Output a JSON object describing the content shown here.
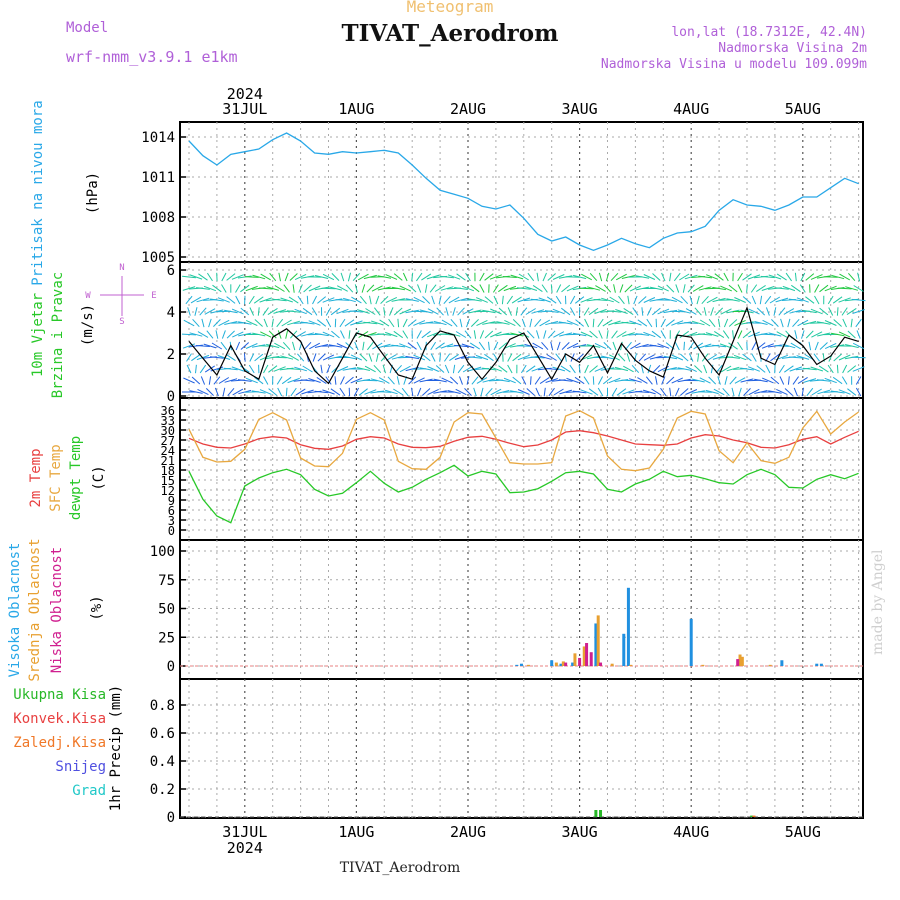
{
  "header": {
    "meteogram_label": "Meteogram",
    "title": "TIVAT_Aerodrom",
    "model_label": "Model",
    "model_name": "wrf-nmm_v3.9.1 e1km",
    "lonlat": "lon,lat (18.7312E, 42.4N)",
    "elevation": "Nadmorska Visina 2m",
    "model_elevation": "Nadmorska Visina u modelu 109.099m",
    "year": "2024",
    "watermark": "made by Angel",
    "footer_station": "TIVAT_Aerodrom"
  },
  "colors": {
    "pressure": "#29a8e8",
    "temp2m": "#e84040",
    "sfc_temp": "#e8a840",
    "dewpt": "#28c828",
    "high_cloud": "#2090e0",
    "mid_cloud": "#e8a030",
    "low_cloud": "#d02090",
    "precip_total": "#28b828",
    "precip_conv": "#e84040",
    "precip_frozen": "#f07828",
    "snow": "#5050e0",
    "hail": "#20c8c8",
    "wind_speed": "#000000",
    "gust_marker": "#e84040"
  },
  "chart_data": [
    {
      "type": "line",
      "panel": "pressure",
      "ylabel": [
        "Pritisak na nivou mora",
        "(hPa)"
      ],
      "ylim": [
        1005,
        1015
      ],
      "yticks": [
        1005,
        1008,
        1011,
        1014
      ],
      "xticks": [
        "31JUL",
        "1AUG",
        "2AUG",
        "3AUG",
        "4AUG",
        "5AUG"
      ],
      "x_hours": [
        0,
        3,
        6,
        9,
        12,
        15,
        18,
        21,
        24,
        27,
        30,
        33,
        36,
        39,
        42,
        45,
        48,
        51,
        54,
        57,
        60,
        63,
        66,
        69,
        72,
        75,
        78,
        81,
        84,
        87,
        90,
        93,
        96,
        99,
        102,
        105,
        108,
        111,
        114,
        117,
        120,
        123,
        126,
        129,
        132,
        135,
        138,
        141,
        144
      ],
      "values": [
        1013.7,
        1012.6,
        1011.9,
        1012.7,
        1012.9,
        1013.1,
        1013.8,
        1014.3,
        1013.7,
        1012.8,
        1012.7,
        1012.9,
        1012.8,
        1012.9,
        1013.0,
        1012.8,
        1011.9,
        1010.9,
        1010.0,
        1009.7,
        1009.4,
        1008.8,
        1008.6,
        1008.9,
        1007.9,
        1006.7,
        1006.2,
        1006.5,
        1005.9,
        1005.5,
        1005.9,
        1006.4,
        1006.0,
        1005.7,
        1006.4,
        1006.8,
        1006.9,
        1007.3,
        1008.5,
        1009.3,
        1008.9,
        1008.8,
        1008.5,
        1008.9,
        1009.5,
        1009.5,
        1010.2,
        1010.9,
        1010.5
      ]
    },
    {
      "type": "line",
      "panel": "wind",
      "ylabel": [
        "10m Vjetar",
        "Brzina i Pravac",
        "(m/s)"
      ],
      "compass": [
        "N",
        "W",
        "E",
        "S"
      ],
      "ylim": [
        0,
        6.2
      ],
      "yticks": [
        0,
        2,
        4,
        6
      ],
      "x_hours": [
        0,
        3,
        6,
        9,
        12,
        15,
        18,
        21,
        24,
        27,
        30,
        33,
        36,
        39,
        42,
        45,
        48,
        51,
        54,
        57,
        60,
        63,
        66,
        69,
        72,
        75,
        78,
        81,
        84,
        87,
        90,
        93,
        96,
        99,
        102,
        105,
        108,
        111,
        114,
        117,
        120,
        123,
        126,
        129,
        132,
        135,
        138,
        141,
        144
      ],
      "speed": [
        2.6,
        1.8,
        1.0,
        2.4,
        1.2,
        0.8,
        2.8,
        3.2,
        2.6,
        1.2,
        0.6,
        1.8,
        3.0,
        2.8,
        1.9,
        1.0,
        0.8,
        2.4,
        3.1,
        2.9,
        1.6,
        0.8,
        1.6,
        2.7,
        3.0,
        1.9,
        0.8,
        2.0,
        1.6,
        2.4,
        1.1,
        2.5,
        1.7,
        1.2,
        0.9,
        2.9,
        2.8,
        1.8,
        1.0,
        2.6,
        4.2,
        1.8,
        1.5,
        2.9,
        2.4,
        1.5,
        1.9,
        2.8,
        2.6
      ]
    },
    {
      "type": "line",
      "panel": "temperature",
      "ylabel": [
        "2m Temp",
        "SFC Temp",
        "dewpt Temp",
        "(C)"
      ],
      "ylim": [
        0,
        36
      ],
      "yticks": [
        0,
        3,
        6,
        9,
        12,
        15,
        18,
        21,
        24,
        27,
        30,
        33,
        36
      ],
      "x_hours": [
        0,
        3,
        6,
        9,
        12,
        15,
        18,
        21,
        24,
        27,
        30,
        33,
        36,
        39,
        42,
        45,
        48,
        51,
        54,
        57,
        60,
        63,
        66,
        69,
        72,
        75,
        78,
        81,
        84,
        87,
        90,
        93,
        96,
        99,
        102,
        105,
        108,
        111,
        114,
        117,
        120,
        123,
        126,
        129,
        132,
        135,
        138,
        141,
        144
      ],
      "series": [
        {
          "name": "2m Temp",
          "values": [
            27.5,
            25.8,
            24.8,
            24.6,
            25.8,
            27.4,
            28.0,
            27.6,
            25.6,
            24.5,
            24.2,
            25.2,
            27.2,
            28.0,
            27.6,
            25.8,
            24.8,
            24.7,
            25.1,
            26.6,
            27.8,
            28.1,
            27.2,
            26.0,
            25.0,
            25.5,
            27.0,
            29.4,
            29.8,
            29.2,
            28.2,
            27.0,
            25.8,
            25.6,
            25.4,
            25.8,
            27.6,
            28.6,
            28.2,
            27.0,
            26.2,
            24.8,
            24.6,
            25.6,
            27.2,
            28.0,
            25.8,
            27.8,
            29.6
          ]
        },
        {
          "name": "SFC Temp",
          "values": [
            30.2,
            21.8,
            20.4,
            20.6,
            24.2,
            33.2,
            35.2,
            33.0,
            21.6,
            19.2,
            19.0,
            23.0,
            33.2,
            35.2,
            33.0,
            20.6,
            18.4,
            18.2,
            21.8,
            32.4,
            35.2,
            34.8,
            27.6,
            20.2,
            19.8,
            19.8,
            20.2,
            34.2,
            35.8,
            33.6,
            22.2,
            18.2,
            17.8,
            18.6,
            24.2,
            33.6,
            35.6,
            34.8,
            23.8,
            20.2,
            26.2,
            20.8,
            20.0,
            21.8,
            30.6,
            35.6,
            28.8,
            32.4,
            35.4
          ]
        },
        {
          "name": "dewpt Temp",
          "values": [
            17.6,
            9.2,
            4.2,
            2.2,
            13.2,
            15.6,
            17.2,
            18.2,
            16.6,
            12.2,
            10.2,
            11.0,
            14.2,
            17.6,
            14.0,
            11.4,
            12.8,
            15.2,
            17.2,
            19.4,
            16.2,
            17.6,
            16.8,
            11.2,
            11.4,
            12.4,
            14.6,
            17.2,
            17.6,
            16.8,
            12.2,
            11.4,
            13.8,
            15.2,
            17.6,
            16.0,
            16.4,
            15.4,
            14.2,
            13.8,
            16.6,
            18.2,
            16.6,
            12.8,
            12.6,
            15.2,
            16.6,
            15.4,
            17.0
          ]
        }
      ]
    },
    {
      "type": "bar",
      "panel": "cloud",
      "ylabel": [
        "Visoka Oblacnost",
        "Srednja Oblacnost",
        "Niska Oblacnost",
        "(%)"
      ],
      "ylim": [
        -3,
        103
      ],
      "yticks": [
        0,
        25,
        50,
        75,
        100
      ],
      "series": [
        {
          "name": "Visoka Oblacnost",
          "hours": [
            70.5,
            71.5,
            78.0,
            80.0,
            82.5,
            87.5,
            93.5,
            94.5,
            108.0,
            127.5,
            135.0,
            136.0
          ],
          "values": [
            1,
            2,
            5,
            2,
            3,
            37,
            28,
            68,
            41,
            5,
            2,
            2
          ]
        },
        {
          "name": "Srednja Oblacnost",
          "hours": [
            73.0,
            79.0,
            80.5,
            83.0,
            85.0,
            88.0,
            91.0,
            95.0,
            110.5,
            118.5,
            119.0,
            125.0
          ],
          "values": [
            1,
            3,
            4,
            11,
            17,
            44,
            2,
            1,
            1,
            10,
            8,
            1
          ]
        },
        {
          "name": "Niska Oblacnost",
          "hours": [
            81.0,
            84.0,
            85.5,
            86.5,
            88.5,
            118.0
          ],
          "values": [
            3,
            7,
            20,
            12,
            3,
            6
          ]
        }
      ]
    },
    {
      "type": "bar",
      "panel": "precip",
      "ylabel": [
        "1hr Precip (mm)"
      ],
      "legend": [
        "Ukupna Kisa",
        "Konvek.Kisa",
        "Zaledj.Kisa",
        "Snijeg",
        "Grad"
      ],
      "ylim": [
        0,
        1
      ],
      "yticks": [
        0,
        0.2,
        0.4,
        0.6,
        0.8
      ],
      "series": [
        {
          "name": "Ukupna Kisa",
          "hours": [
            87.5,
            88.5,
            121.0
          ],
          "values": [
            0.05,
            0.05,
            0.01
          ]
        },
        {
          "name": "Zaledj.Kisa",
          "hours": [
            121.5
          ],
          "values": [
            0.01
          ]
        }
      ],
      "xticks": [
        "31JUL",
        "1AUG",
        "2AUG",
        "3AUG",
        "4AUG",
        "5AUG"
      ]
    }
  ]
}
